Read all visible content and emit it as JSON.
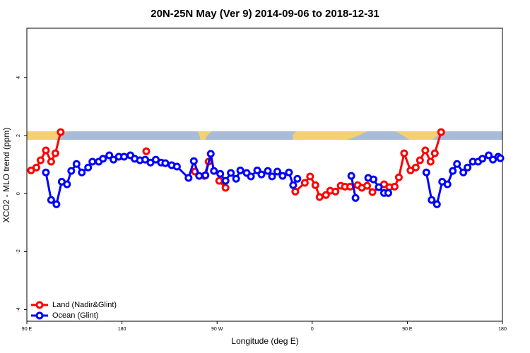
{
  "chart_data": {
    "type": "line",
    "title": "20N-25N May (Ver 9)   2014-09-06 to 2018-12-31",
    "x_label": "Longitude (deg E)",
    "y_label": "XCO2 - MLO trend (ppm)",
    "xlim": [
      90,
      540
    ],
    "ylim": [
      -4.4,
      5.7
    ],
    "xticks": [
      {
        "value": 90,
        "label": "90 E"
      },
      {
        "value": 180,
        "label": "180"
      },
      {
        "value": 270,
        "label": "90 W"
      },
      {
        "value": 360,
        "label": "0"
      },
      {
        "value": 450,
        "label": "90 E"
      },
      {
        "value": 540,
        "label": "180"
      }
    ],
    "yticks": [
      -4,
      -2,
      0,
      2,
      4
    ],
    "legend": "bottomleft",
    "series": [
      {
        "name": "Land (Nadir&Glint)",
        "color": "#ff0000",
        "x": [
          94,
          99,
          103,
          108,
          113,
          117,
          122,
          null,
          203,
          null,
          249,
          258,
          262,
          null,
          272,
          278,
          null,
          344,
          353,
          358,
          363,
          367,
          373,
          377,
          382,
          387,
          391,
          396,
          403,
          407,
          412,
          417,
          428,
          433,
          438,
          442,
          447,
          453,
          458,
          462,
          467,
          472,
          476,
          482
        ],
        "values": [
          0.8,
          0.9,
          1.15,
          1.49,
          1.1,
          1.39,
          2.12,
          null,
          1.46,
          null,
          0.76,
          0.61,
          1.1,
          null,
          0.44,
          0.2,
          null,
          0.07,
          0.37,
          0.59,
          0.29,
          -0.12,
          -0.05,
          0.1,
          0.07,
          0.27,
          0.24,
          0.24,
          0.29,
          0.2,
          0.27,
          0.05,
          0.32,
          0.22,
          0.24,
          0.56,
          1.39,
          0.8,
          0.9,
          1.15,
          1.49,
          1.1,
          1.39,
          2.12
        ]
      },
      {
        "name": "Ocean (Glint)",
        "color": "#0000ff",
        "x": [
          108,
          113,
          118,
          123,
          128,
          132,
          137,
          142,
          148,
          152,
          158,
          162,
          168,
          172,
          177,
          182,
          188,
          192,
          197,
          202,
          207,
          212,
          217,
          221,
          227,
          232,
          243,
          248,
          253,
          259,
          264,
          267,
          273,
          278,
          283,
          288,
          292,
          298,
          302,
          308,
          312,
          318,
          322,
          327,
          332,
          338,
          342,
          346,
          null,
          397,
          401,
          null,
          413,
          418,
          423,
          428,
          432,
          null,
          468,
          473,
          478,
          483,
          488,
          493,
          497,
          503,
          507,
          512,
          517,
          521,
          527,
          531,
          536,
          538
        ],
        "values": [
          0.73,
          -0.22,
          -0.37,
          0.41,
          0.32,
          0.78,
          1.02,
          0.73,
          0.9,
          1.1,
          1.1,
          1.2,
          1.32,
          1.17,
          1.27,
          1.27,
          1.32,
          1.2,
          1.15,
          1.17,
          1.07,
          1.17,
          1.07,
          1.05,
          0.98,
          0.93,
          0.54,
          1.12,
          0.61,
          0.63,
          1.37,
          0.78,
          0.68,
          0.44,
          0.71,
          0.51,
          0.8,
          0.71,
          0.59,
          0.8,
          0.66,
          0.78,
          0.59,
          0.76,
          0.61,
          0.73,
          0.29,
          0.51,
          null,
          0.61,
          -0.15,
          null,
          0.54,
          0.49,
          0.22,
          0.02,
          0.02,
          null,
          0.73,
          -0.22,
          -0.37,
          0.41,
          0.32,
          0.78,
          1.02,
          0.73,
          0.9,
          1.1,
          1.1,
          1.2,
          1.32,
          1.17,
          1.27,
          1.22
        ]
      }
    ]
  }
}
